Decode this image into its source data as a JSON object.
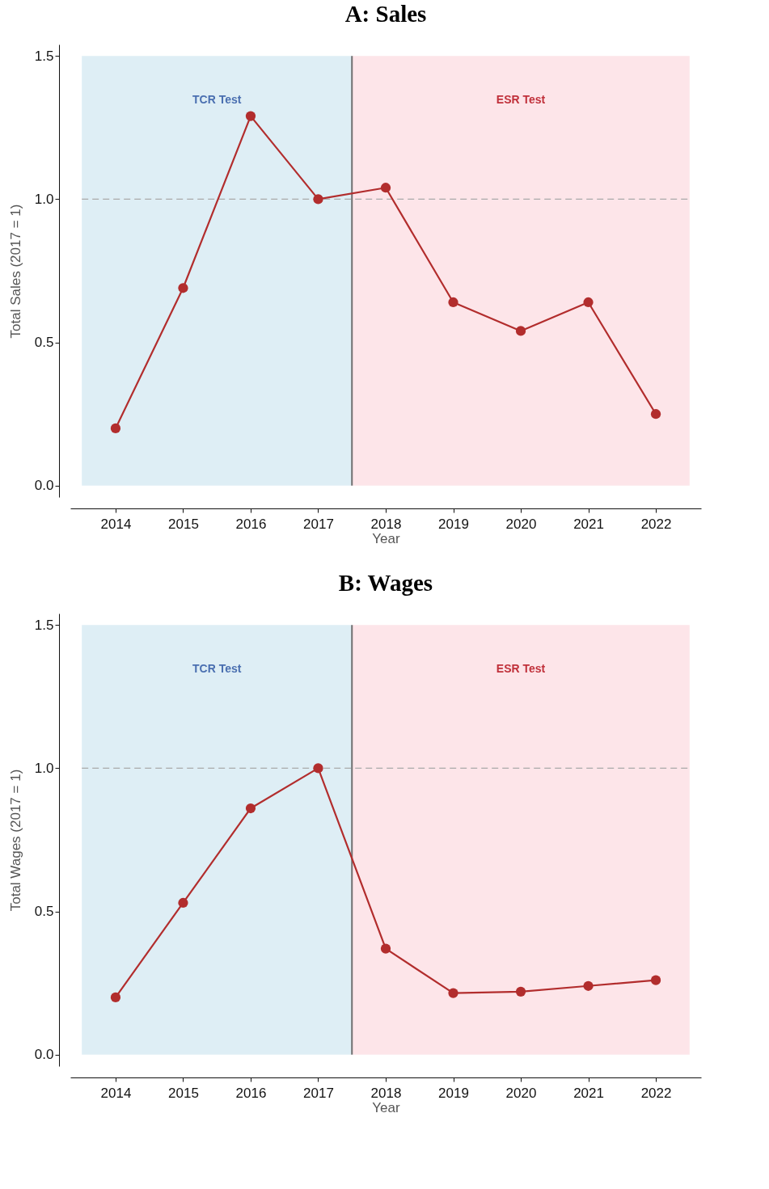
{
  "chart_data": [
    {
      "type": "line",
      "title": "A: Sales",
      "xlabel": "Year",
      "ylabel": "Total Sales (2017 = 1)",
      "x": [
        2014,
        2015,
        2016,
        2017,
        2018,
        2019,
        2020,
        2021,
        2022
      ],
      "series": [
        {
          "color": "#b22d2d",
          "values": [
            0.2,
            0.69,
            1.29,
            1.0,
            1.04,
            0.64,
            0.54,
            0.64,
            0.25
          ]
        }
      ],
      "xlim": [
        2013.33,
        2022.67
      ],
      "xticks": [
        2014,
        2015,
        2016,
        2017,
        2018,
        2019,
        2020,
        2021,
        2022
      ],
      "ylim": [
        -0.04,
        1.54
      ],
      "yticks": [
        {
          "value": 0,
          "label": "0.0"
        },
        {
          "value": 0.5,
          "label": "0.5"
        },
        {
          "value": 1,
          "label": "1.0"
        },
        {
          "value": 1.5,
          "label": "1.5"
        }
      ],
      "bands": [
        {
          "axis": "x",
          "from": 2013.5,
          "to": 2017.5,
          "label": "TCR Test",
          "color": "#deeef5"
        },
        {
          "axis": "x",
          "from": 2017.5,
          "to": 2022.5,
          "label": "ESR Test",
          "color": "#fde5e9"
        }
      ],
      "ref_lines": [
        {
          "axis": "y",
          "value": 1,
          "color": "#aaaaaa",
          "line_style": "dashed"
        },
        {
          "axis": "x",
          "value": 2017.5,
          "color": "#707070",
          "line_style": "solid"
        }
      ],
      "marker": "circle",
      "grid": false
    },
    {
      "type": "line",
      "title": "B: Wages",
      "xlabel": "Year",
      "ylabel": "Total Wages (2017 = 1)",
      "x": [
        2014,
        2015,
        2016,
        2017,
        2018,
        2019,
        2020,
        2021,
        2022
      ],
      "series": [
        {
          "color": "#b22d2d",
          "values": [
            0.2,
            0.53,
            0.86,
            1.0,
            0.37,
            0.215,
            0.22,
            0.24,
            0.26
          ]
        }
      ],
      "xlim": [
        2013.33,
        2022.67
      ],
      "xticks": [
        2014,
        2015,
        2016,
        2017,
        2018,
        2019,
        2020,
        2021,
        2022
      ],
      "ylim": [
        -0.04,
        1.54
      ],
      "yticks": [
        {
          "value": 0,
          "label": "0.0"
        },
        {
          "value": 0.5,
          "label": "0.5"
        },
        {
          "value": 1,
          "label": "1.0"
        },
        {
          "value": 1.5,
          "label": "1.5"
        }
      ],
      "bands": [
        {
          "axis": "x",
          "from": 2013.5,
          "to": 2017.5,
          "label": "TCR Test",
          "color": "#deeef5"
        },
        {
          "axis": "x",
          "from": 2017.5,
          "to": 2022.5,
          "label": "ESR Test",
          "color": "#fde5e9"
        }
      ],
      "ref_lines": [
        {
          "axis": "y",
          "value": 1,
          "color": "#aaaaaa",
          "line_style": "dashed"
        },
        {
          "axis": "x",
          "value": 2017.5,
          "color": "#707070",
          "line_style": "solid"
        }
      ],
      "marker": "circle",
      "grid": false
    }
  ]
}
